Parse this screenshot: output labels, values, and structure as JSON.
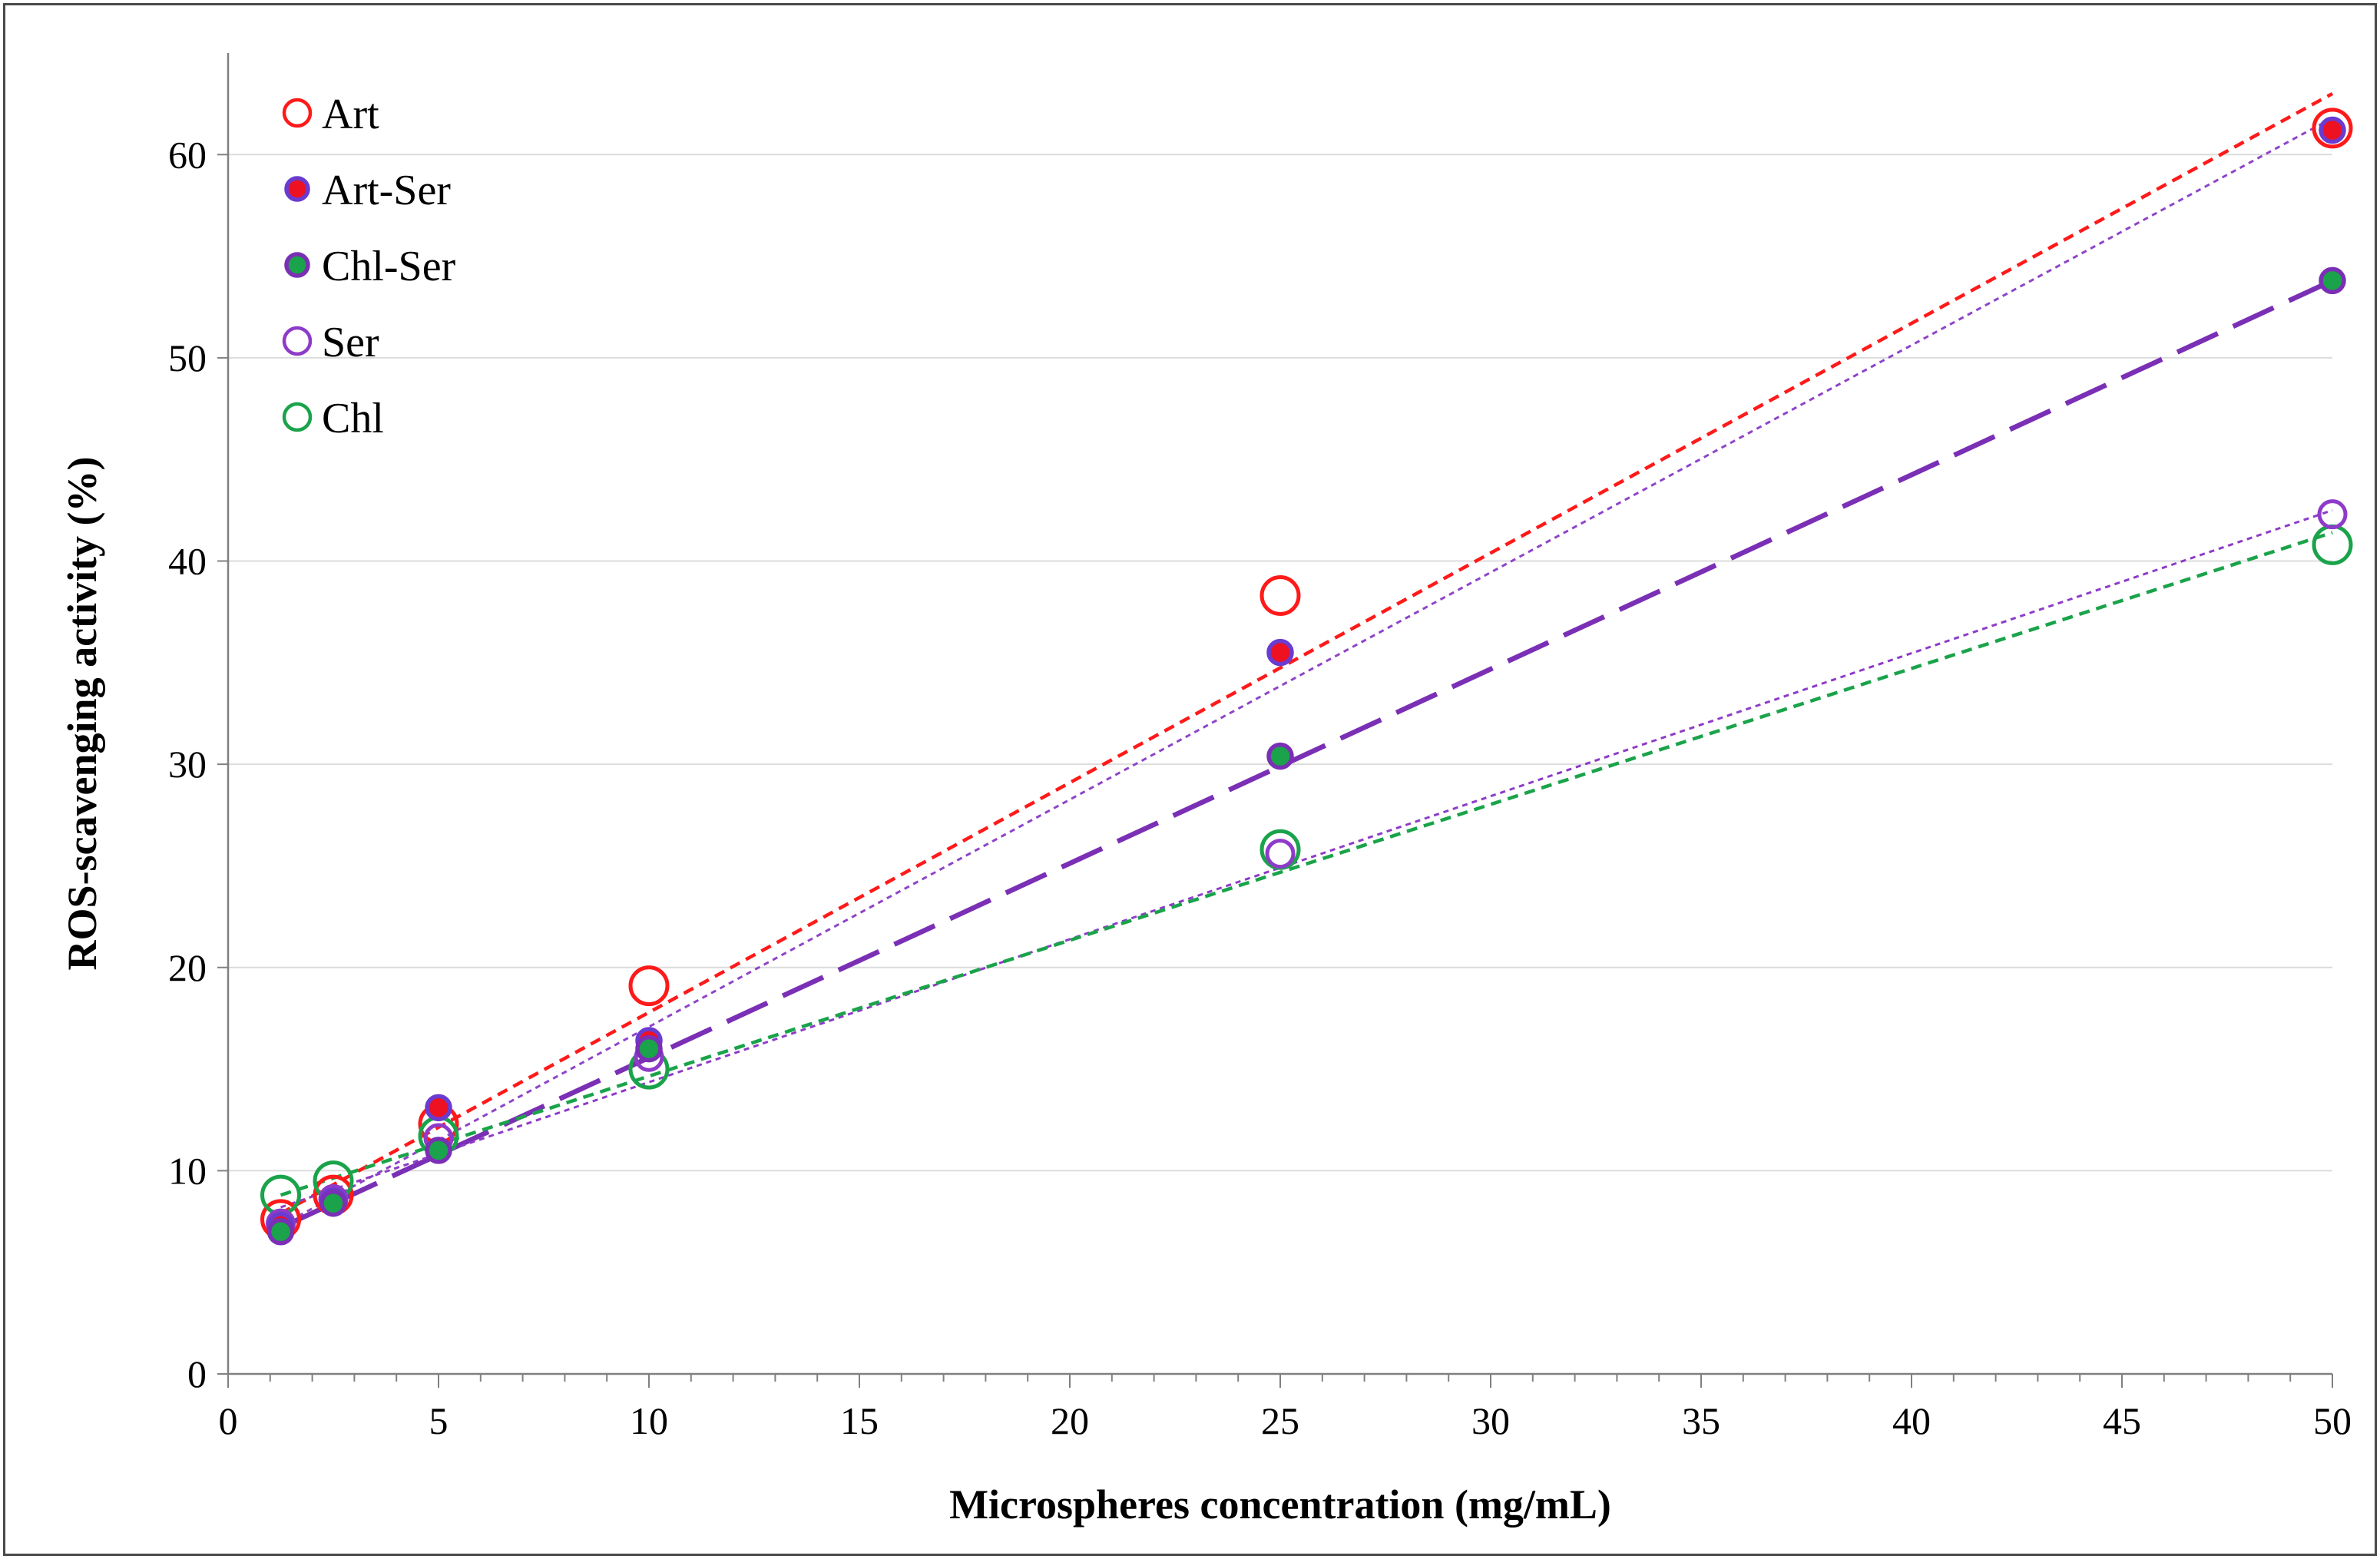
{
  "chart_data": {
    "type": "scatter",
    "title": "",
    "xlabel": "Microspheres concentration (mg/mL)",
    "ylabel": "ROS-scavenging activity (%)",
    "xlim": [
      0,
      50
    ],
    "ylim": [
      0,
      65
    ],
    "x_ticks": [
      0,
      5,
      10,
      15,
      20,
      25,
      30,
      35,
      40,
      45,
      50
    ],
    "y_ticks": [
      0,
      10,
      20,
      30,
      40,
      50,
      60
    ],
    "grid": "horizontal",
    "legend_position": "top-left",
    "series": [
      {
        "name": "Art",
        "marker": "open-circle",
        "edge_color": "#ff1a1a",
        "fill_color": "none",
        "x": [
          1.25,
          2.5,
          5,
          10,
          25,
          50
        ],
        "y": [
          7.6,
          8.8,
          12.3,
          19.1,
          38.3,
          61.3
        ],
        "trendline": {
          "style": "short-dash",
          "color": "#ff1a1a",
          "x": [
            1.25,
            50
          ],
          "y": [
            7.9,
            63.0
          ]
        }
      },
      {
        "name": "Art-Ser",
        "marker": "filled-circle",
        "edge_color": "#6a3bd0",
        "fill_color": "#ee1122",
        "x": [
          1.25,
          2.5,
          5,
          10,
          25,
          50
        ],
        "y": [
          7.3,
          8.5,
          13.1,
          16.4,
          35.5,
          61.2
        ],
        "trendline": {
          "style": "dotted",
          "color": "#8e44c9",
          "x": [
            1.25,
            50
          ],
          "y": [
            7.3,
            61.8
          ]
        }
      },
      {
        "name": "Chl-Ser",
        "marker": "filled-circle",
        "edge_color": "#7a2fb5",
        "fill_color": "#1aa34a",
        "x": [
          1.25,
          2.5,
          5,
          10,
          25,
          50
        ],
        "y": [
          7.0,
          8.4,
          11.0,
          16.0,
          30.4,
          53.8
        ],
        "trendline": {
          "style": "long-dash",
          "color": "#7a2fb5",
          "x": [
            1.25,
            50
          ],
          "y": [
            7.2,
            53.8
          ]
        }
      },
      {
        "name": "Ser",
        "marker": "open-circle",
        "edge_color": "#8e3bc9",
        "fill_color": "none",
        "x": [
          1.25,
          2.5,
          5,
          10,
          25,
          50
        ],
        "y": [
          7.4,
          8.6,
          11.6,
          15.6,
          25.6,
          42.3
        ],
        "trendline": {
          "style": "dotted",
          "color": "#8e3bc9",
          "x": [
            1.25,
            50
          ],
          "y": [
            8.2,
            42.5
          ]
        }
      },
      {
        "name": "Chl",
        "marker": "open-circle",
        "edge_color": "#1aa34a",
        "fill_color": "none",
        "x": [
          1.25,
          2.5,
          5,
          10,
          25,
          50
        ],
        "y": [
          8.8,
          9.5,
          11.7,
          15.0,
          25.8,
          40.8
        ],
        "trendline": {
          "style": "short-dash",
          "color": "#1aa34a",
          "x": [
            1.25,
            50
          ],
          "y": [
            8.8,
            41.4
          ]
        }
      }
    ]
  }
}
